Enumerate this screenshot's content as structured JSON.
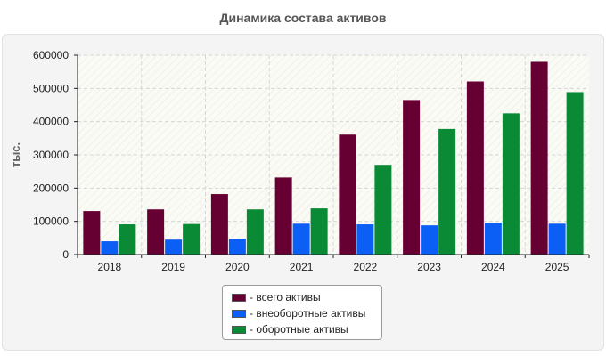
{
  "chart_data": {
    "type": "bar",
    "title": "Динамика состава активов",
    "ylabel": "тыс.",
    "xlabel": "",
    "categories": [
      "2018",
      "2019",
      "2020",
      "2021",
      "2022",
      "2023",
      "2024",
      "2025"
    ],
    "series": [
      {
        "name": "- всего активы",
        "color": "#660033",
        "values": [
          131000,
          136000,
          182000,
          232000,
          361000,
          465000,
          521000,
          580000
        ]
      },
      {
        "name": "- внеоборотные активы",
        "color": "#0b5ff5",
        "values": [
          40000,
          45000,
          48000,
          93000,
          91000,
          88000,
          96000,
          93000
        ]
      },
      {
        "name": "- оборотные активы",
        "color": "#0b8a36",
        "values": [
          91000,
          92000,
          136000,
          139000,
          270000,
          378000,
          425000,
          489000
        ]
      }
    ],
    "ylim": [
      0,
      600000
    ],
    "yticks": [
      0,
      100000,
      200000,
      300000,
      400000,
      500000,
      600000
    ],
    "grid": true,
    "legend_position": "bottom"
  }
}
